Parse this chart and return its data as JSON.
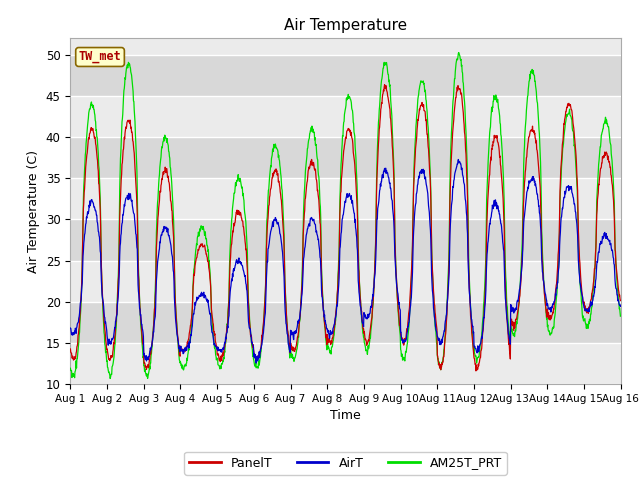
{
  "title": "Air Temperature",
  "ylabel": "Air Temperature (C)",
  "xlabel": "Time",
  "ylim": [
    10,
    52
  ],
  "yticks": [
    10,
    15,
    20,
    25,
    30,
    35,
    40,
    45,
    50
  ],
  "station_label": "TW_met",
  "legend_labels": [
    "PanelT",
    "AirT",
    "AM25T_PRT"
  ],
  "colors": {
    "PanelT": "#cc0000",
    "AirT": "#0000cc",
    "AM25T_PRT": "#00dd00"
  },
  "bg_color_light": "#ebebeb",
  "bg_color_dark": "#d8d8d8",
  "fig_bg": "#ffffff",
  "n_days": 15,
  "panel_peaks": [
    41,
    42,
    36,
    27,
    31,
    36,
    37,
    41,
    46,
    44,
    46,
    40,
    41,
    44,
    38
  ],
  "air_peaks": [
    32,
    33,
    29,
    21,
    25,
    30,
    30,
    33,
    36,
    36,
    37,
    32,
    35,
    34,
    28
  ],
  "am25t_peaks": [
    44,
    49,
    40,
    29,
    35,
    39,
    41,
    45,
    49,
    47,
    50,
    45,
    48,
    43,
    42
  ],
  "panel_mins": [
    13,
    13,
    12,
    14,
    13,
    13,
    14,
    15,
    15,
    15,
    12,
    12,
    17,
    18,
    19
  ],
  "air_mins": [
    16,
    15,
    13,
    14,
    14,
    13,
    16,
    16,
    18,
    15,
    15,
    14,
    19,
    19,
    19
  ],
  "am25t_mins": [
    11,
    11,
    11,
    12,
    12,
    12,
    13,
    14,
    14,
    13,
    12,
    13,
    16,
    16,
    17
  ],
  "peak_hour": 14,
  "min_hour": 5,
  "pts_per_day": 96
}
